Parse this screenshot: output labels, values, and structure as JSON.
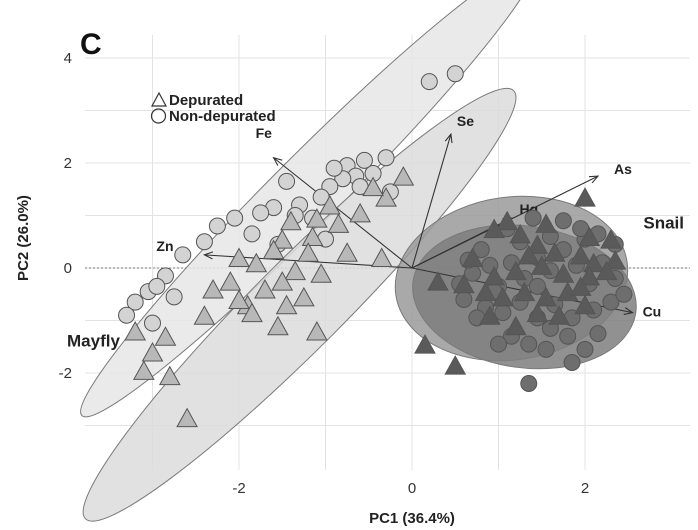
{
  "chart_data": {
    "type": "scatter",
    "panel_label": "C",
    "xlabel": "PC1 (36.4%)",
    "ylabel": "PC2 (26.0%)",
    "xlim": [
      -3.8,
      2.75
    ],
    "ylim": [
      -3.45,
      4.3
    ],
    "xticks": [
      -2,
      0,
      2
    ],
    "yticks": [
      -2,
      0,
      2,
      4
    ],
    "grid": true,
    "zero_lines": true,
    "legend": {
      "position": "top-left",
      "entries": [
        {
          "label": "Depurated",
          "marker": "triangle"
        },
        {
          "label": "Non-depurated",
          "marker": "circle"
        }
      ]
    },
    "group_labels": [
      {
        "text": "Mayfly",
        "x": -3.35,
        "y": -1.4
      },
      {
        "text": "Snail",
        "x": 2.9,
        "y": 0.85
      }
    ],
    "ellipses": [
      {
        "group": "Mayfly Non-depurated",
        "cx": -1.2,
        "cy": 1.5,
        "rx": 3.7,
        "ry": 0.65,
        "angle_deg": 45,
        "fill": "#e6e6e6"
      },
      {
        "group": "Mayfly Depurated",
        "cx": -1.3,
        "cy": -0.7,
        "rx": 3.5,
        "ry": 0.85,
        "angle_deg": 45,
        "fill": "#dcdcdc"
      },
      {
        "group": "Snail Non-depurated",
        "cx": 1.15,
        "cy": -0.2,
        "rx": 1.35,
        "ry": 1.55,
        "angle_deg": 8,
        "fill": "#9a9a9a"
      },
      {
        "group": "Snail Depurated",
        "cx": 1.3,
        "cy": -0.55,
        "rx": 1.3,
        "ry": 1.35,
        "angle_deg": -8,
        "fill": "#7e7e7e"
      }
    ],
    "loadings": [
      {
        "label": "Fe",
        "x": -1.6,
        "y": 2.1
      },
      {
        "label": "Se",
        "x": 0.45,
        "y": 2.55
      },
      {
        "label": "As",
        "x": 2.15,
        "y": 1.75
      },
      {
        "label": "Hg",
        "x": 1.15,
        "y": 0.95
      },
      {
        "label": "Zn",
        "x": -2.4,
        "y": 0.25
      },
      {
        "label": "Cu",
        "x": 2.55,
        "y": -0.85
      }
    ],
    "series": [
      {
        "name": "Mayfly Non-depurated",
        "marker": "circle",
        "color": "#d3d3d3",
        "points": [
          [
            0.2,
            3.55
          ],
          [
            0.5,
            3.7
          ],
          [
            -0.75,
            1.95
          ],
          [
            -0.65,
            1.75
          ],
          [
            -0.45,
            1.8
          ],
          [
            -0.3,
            2.1
          ],
          [
            -0.55,
            2.05
          ],
          [
            -0.8,
            1.7
          ],
          [
            -0.95,
            1.55
          ],
          [
            -0.9,
            1.9
          ],
          [
            -0.6,
            1.55
          ],
          [
            -1.05,
            1.35
          ],
          [
            -1.3,
            1.2
          ],
          [
            -1.45,
            1.65
          ],
          [
            -1.15,
            0.95
          ],
          [
            -1.35,
            1.0
          ],
          [
            -1.6,
            1.15
          ],
          [
            -0.25,
            1.45
          ],
          [
            -1.75,
            1.05
          ],
          [
            -2.05,
            0.95
          ],
          [
            -1.85,
            0.65
          ],
          [
            -2.25,
            0.8
          ],
          [
            -1.55,
            0.45
          ],
          [
            -1.0,
            0.55
          ],
          [
            -2.4,
            0.5
          ],
          [
            -2.65,
            0.25
          ],
          [
            -2.85,
            -0.15
          ],
          [
            -3.05,
            -0.45
          ],
          [
            -3.2,
            -0.65
          ],
          [
            -2.95,
            -0.35
          ],
          [
            -2.75,
            -0.55
          ],
          [
            -3.3,
            -0.9
          ],
          [
            -3.0,
            -1.05
          ]
        ]
      },
      {
        "name": "Mayfly Depurated",
        "marker": "triangle",
        "color": "#b8b8b8",
        "points": [
          [
            -0.1,
            1.75
          ],
          [
            -0.3,
            1.35
          ],
          [
            -0.45,
            1.55
          ],
          [
            -0.6,
            1.05
          ],
          [
            -0.95,
            1.2
          ],
          [
            -1.1,
            0.95
          ],
          [
            -0.85,
            0.85
          ],
          [
            -1.4,
            0.9
          ],
          [
            -1.15,
            0.6
          ],
          [
            -1.5,
            0.55
          ],
          [
            -0.75,
            0.3
          ],
          [
            -0.35,
            0.2
          ],
          [
            -1.2,
            0.3
          ],
          [
            -1.6,
            0.35
          ],
          [
            -1.8,
            0.1
          ],
          [
            -2.0,
            0.2
          ],
          [
            -1.35,
            -0.05
          ],
          [
            -1.05,
            -0.1
          ],
          [
            -1.5,
            -0.25
          ],
          [
            -2.1,
            -0.25
          ],
          [
            -1.7,
            -0.4
          ],
          [
            -1.25,
            -0.55
          ],
          [
            -2.3,
            -0.4
          ],
          [
            -1.9,
            -0.7
          ],
          [
            -2.4,
            -0.9
          ],
          [
            -1.85,
            -0.85
          ],
          [
            -1.55,
            -1.1
          ],
          [
            -1.1,
            -1.2
          ],
          [
            -2.0,
            -0.6
          ],
          [
            -1.45,
            -0.7
          ],
          [
            -3.2,
            -1.2
          ],
          [
            -2.85,
            -1.3
          ],
          [
            -3.0,
            -1.6
          ],
          [
            -3.1,
            -1.95
          ],
          [
            -2.8,
            -2.05
          ],
          [
            -2.6,
            -2.85
          ]
        ]
      },
      {
        "name": "Snail Non-depurated",
        "marker": "circle",
        "color": "#6e6e6e",
        "points": [
          [
            0.55,
            -0.3
          ],
          [
            0.7,
            -0.1
          ],
          [
            0.9,
            0.05
          ],
          [
            1.0,
            -0.35
          ],
          [
            1.15,
            0.1
          ],
          [
            1.3,
            -0.2
          ],
          [
            1.45,
            0.2
          ],
          [
            1.6,
            -0.05
          ],
          [
            1.75,
            0.35
          ],
          [
            1.9,
            0.05
          ],
          [
            2.05,
            -0.3
          ],
          [
            2.2,
            0.1
          ],
          [
            2.35,
            0.45
          ],
          [
            2.0,
            0.55
          ],
          [
            1.6,
            0.6
          ],
          [
            0.6,
            -0.6
          ],
          [
            0.85,
            -0.75
          ],
          [
            1.05,
            -0.85
          ],
          [
            1.25,
            -0.65
          ],
          [
            1.45,
            -0.95
          ],
          [
            1.65,
            -0.7
          ],
          [
            1.85,
            -0.95
          ],
          [
            2.1,
            -0.8
          ],
          [
            2.3,
            -0.65
          ],
          [
            2.45,
            -0.5
          ],
          [
            0.75,
            -0.95
          ],
          [
            1.15,
            -1.3
          ],
          [
            1.35,
            -1.45
          ],
          [
            1.55,
            -1.55
          ],
          [
            1.8,
            -1.3
          ],
          [
            2.15,
            -1.25
          ],
          [
            1.0,
            -1.45
          ],
          [
            1.85,
            -1.8
          ],
          [
            1.35,
            -2.2
          ],
          [
            2.0,
            -1.55
          ],
          [
            0.95,
            -0.45
          ],
          [
            1.45,
            -0.35
          ],
          [
            1.25,
            0.5
          ],
          [
            0.8,
            0.35
          ],
          [
            1.1,
            0.75
          ],
          [
            1.4,
            0.95
          ],
          [
            1.75,
            0.9
          ],
          [
            1.95,
            0.75
          ],
          [
            2.15,
            0.65
          ],
          [
            0.65,
            0.15
          ],
          [
            1.6,
            -1.15
          ],
          [
            2.35,
            -0.2
          ]
        ]
      },
      {
        "name": "Snail Depurated",
        "marker": "triangle",
        "color": "#5a5a5a",
        "points": [
          [
            2.0,
            1.35
          ],
          [
            1.55,
            0.85
          ],
          [
            1.1,
            0.9
          ],
          [
            0.95,
            0.75
          ],
          [
            1.25,
            0.65
          ],
          [
            1.45,
            0.45
          ],
          [
            1.65,
            0.3
          ],
          [
            1.95,
            0.25
          ],
          [
            2.1,
            0.1
          ],
          [
            2.35,
            0.15
          ],
          [
            2.25,
            -0.05
          ],
          [
            2.05,
            -0.15
          ],
          [
            1.75,
            -0.1
          ],
          [
            1.5,
            0.05
          ],
          [
            1.2,
            -0.05
          ],
          [
            0.95,
            -0.15
          ],
          [
            0.6,
            -0.3
          ],
          [
            0.3,
            -0.25
          ],
          [
            0.85,
            -0.45
          ],
          [
            1.05,
            -0.55
          ],
          [
            1.3,
            -0.45
          ],
          [
            1.55,
            -0.55
          ],
          [
            1.8,
            -0.45
          ],
          [
            2.0,
            -0.7
          ],
          [
            1.7,
            -0.9
          ],
          [
            1.45,
            -0.85
          ],
          [
            0.9,
            -0.9
          ],
          [
            1.2,
            -1.1
          ],
          [
            0.5,
            -1.85
          ],
          [
            0.15,
            -1.45
          ],
          [
            2.05,
            0.6
          ],
          [
            2.3,
            0.55
          ],
          [
            0.7,
            0.2
          ],
          [
            1.95,
            -0.35
          ],
          [
            1.35,
            0.25
          ]
        ]
      }
    ]
  }
}
